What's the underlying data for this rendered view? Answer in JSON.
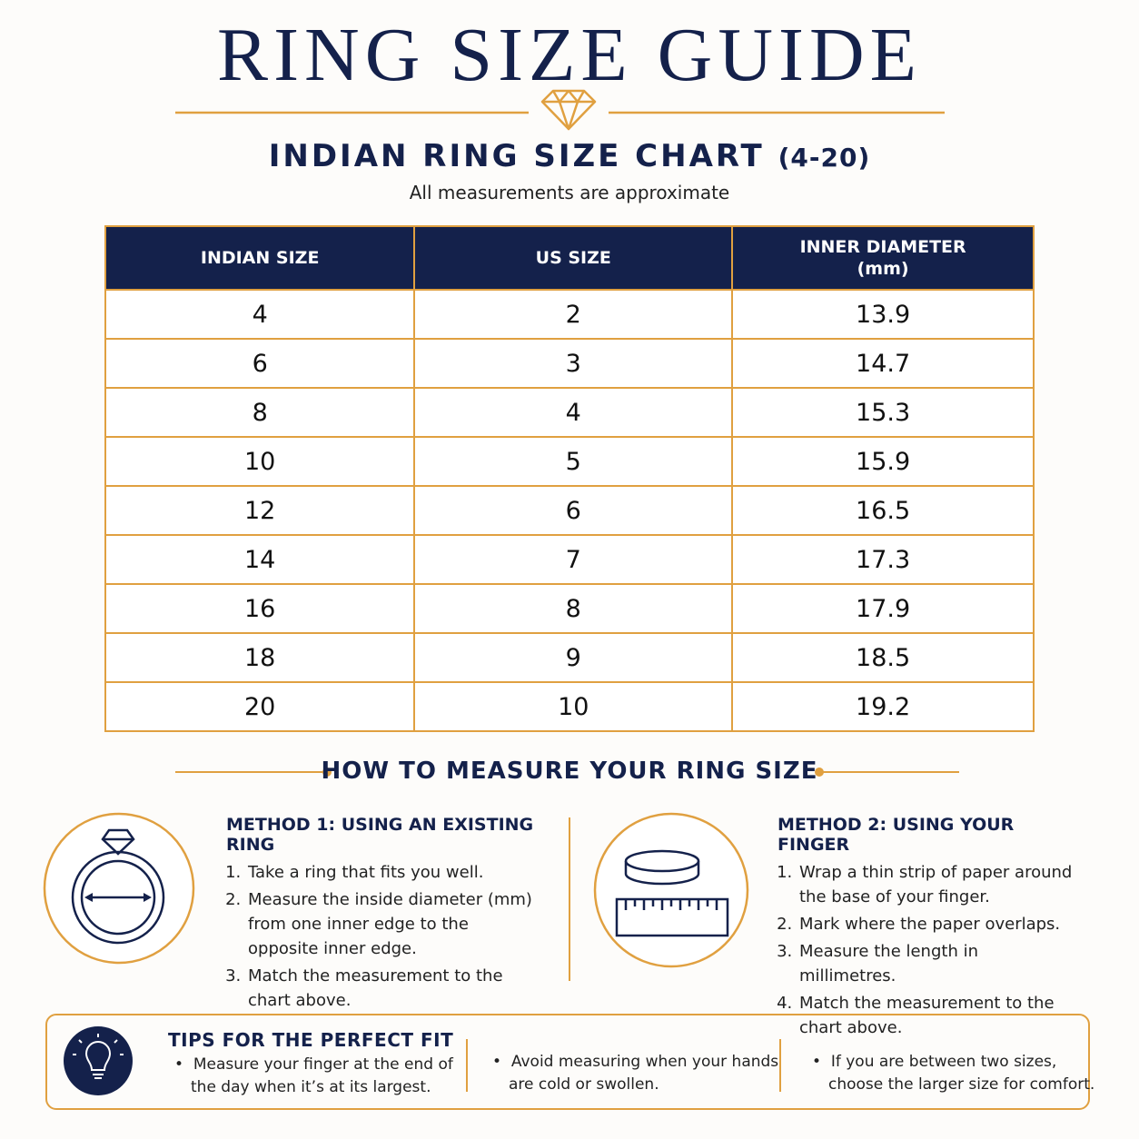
{
  "header": {
    "title": "RING SIZE GUIDE"
  },
  "chart_heading": {
    "title": "INDIAN RING SIZE CHART",
    "range": "(4-20)",
    "note": "All measurements are approximate"
  },
  "table": {
    "headers": [
      [
        "INDIAN SIZE"
      ],
      [
        "US SIZE"
      ],
      [
        "INNER DIAMETER",
        "(mm)"
      ]
    ],
    "rows": [
      [
        4,
        2,
        13.9
      ],
      [
        6,
        3,
        14.7
      ],
      [
        8,
        4,
        15.3
      ],
      [
        10,
        5,
        15.9
      ],
      [
        12,
        6,
        16.5
      ],
      [
        14,
        7,
        17.3
      ],
      [
        16,
        8,
        17.9
      ],
      [
        18,
        9,
        18.5
      ],
      [
        20,
        10,
        19.2
      ]
    ]
  },
  "measure": {
    "title": "HOW TO MEASURE YOUR RING SIZE",
    "methods": [
      {
        "title": "METHOD 1: USING AN EXISTING RING",
        "steps": [
          "Take a ring that fits you well.",
          "Measure the inside diameter (mm) from one inner edge to the opposite inner edge.",
          "Match the measurement to the chart above."
        ]
      },
      {
        "title": "METHOD 2: USING YOUR FINGER",
        "steps": [
          "Wrap a thin strip of paper around the base of your finger.",
          "Mark where the paper overlaps.",
          "Measure the length in millimetres.",
          "Match the measurement to the chart above."
        ]
      }
    ]
  },
  "tips": {
    "title": "TIPS FOR THE PERFECT FIT",
    "items": [
      "Measure your finger at the end of the day when it’s at its largest.",
      "Avoid measuring when your hands are cold or swollen.",
      "If you are between two sizes, choose the larger size for comfort."
    ]
  }
}
